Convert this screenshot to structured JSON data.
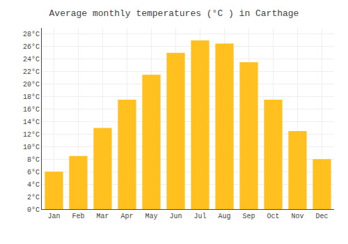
{
  "chart_data": {
    "type": "bar",
    "title": "Average monthly temperatures (°C ) in Carthage",
    "categories": [
      "Jan",
      "Feb",
      "Mar",
      "Apr",
      "May",
      "Jun",
      "Jul",
      "Aug",
      "Sep",
      "Oct",
      "Nov",
      "Dec"
    ],
    "values": [
      6.0,
      8.5,
      13.0,
      17.5,
      21.5,
      25.0,
      27.0,
      26.5,
      23.5,
      17.5,
      12.5,
      8.0
    ],
    "color": "#FFC020",
    "ylim": [
      0,
      29
    ],
    "yticks": [
      {
        "value": 0,
        "label": "0°C"
      },
      {
        "value": 2,
        "label": "2°C"
      },
      {
        "value": 4,
        "label": "4°C"
      },
      {
        "value": 6,
        "label": "6°C"
      },
      {
        "value": 8,
        "label": "8°C"
      },
      {
        "value": 10,
        "label": "10°C"
      },
      {
        "value": 12,
        "label": "12°C"
      },
      {
        "value": 14,
        "label": "14°C"
      },
      {
        "value": 16,
        "label": "16°C"
      },
      {
        "value": 18,
        "label": "18°C"
      },
      {
        "value": 20,
        "label": "20°C"
      },
      {
        "value": 22,
        "label": "22°C"
      },
      {
        "value": 24,
        "label": "24°C"
      },
      {
        "value": 26,
        "label": "26°C"
      },
      {
        "value": 28,
        "label": "28°C"
      }
    ],
    "grid": true
  }
}
